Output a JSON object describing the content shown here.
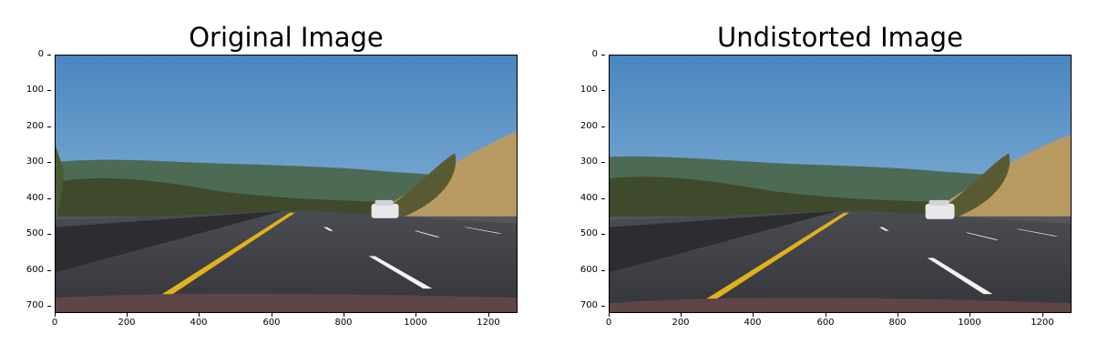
{
  "panels": [
    {
      "title": "Original Image",
      "y_ticks": [
        "0",
        "100",
        "200",
        "300",
        "400",
        "500",
        "600",
        "700"
      ],
      "x_ticks": [
        "0",
        "200",
        "400",
        "600",
        "800",
        "1000",
        "1200"
      ]
    },
    {
      "title": "Undistorted Image",
      "y_ticks": [
        "0",
        "100",
        "200",
        "300",
        "400",
        "500",
        "600",
        "700"
      ],
      "x_ticks": [
        "0",
        "200",
        "400",
        "600",
        "800",
        "1000",
        "1200"
      ]
    }
  ],
  "image_extent": {
    "x_max": 1280,
    "y_max": 720
  },
  "colors": {
    "sky_top": "#4a86bf",
    "sky_bottom": "#8db9dc",
    "asphalt": "#3d3e44",
    "lane_yellow": "#e0b21c",
    "lane_white": "#f2f2f2",
    "hill_dry": "#b89a62",
    "trees": "#3f4a2c"
  }
}
